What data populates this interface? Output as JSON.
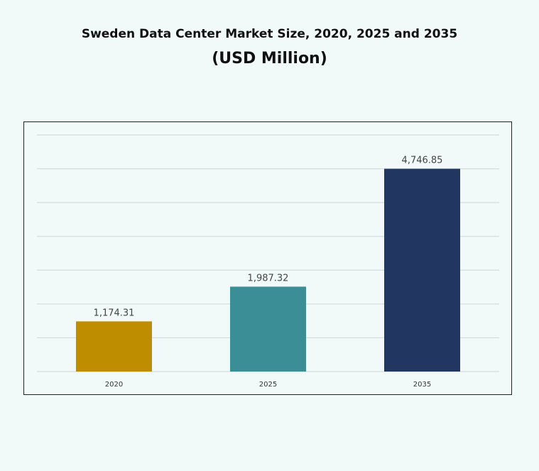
{
  "chart_data": {
    "type": "bar",
    "title": "Sweden Data Center Market Size, 2020, 2025 and 2035",
    "subtitle": "(USD Million)",
    "categories": [
      "2020",
      "2025",
      "2035"
    ],
    "values": [
      1174.31,
      1987.32,
      4746.85
    ],
    "data_labels": [
      "1,174.31",
      "1,987.32",
      "4,746.85"
    ],
    "colors": [
      "#bf8e00",
      "#3b8e96",
      "#213761"
    ],
    "xlabel": "",
    "ylabel": "",
    "grid": true,
    "legend": "none"
  }
}
